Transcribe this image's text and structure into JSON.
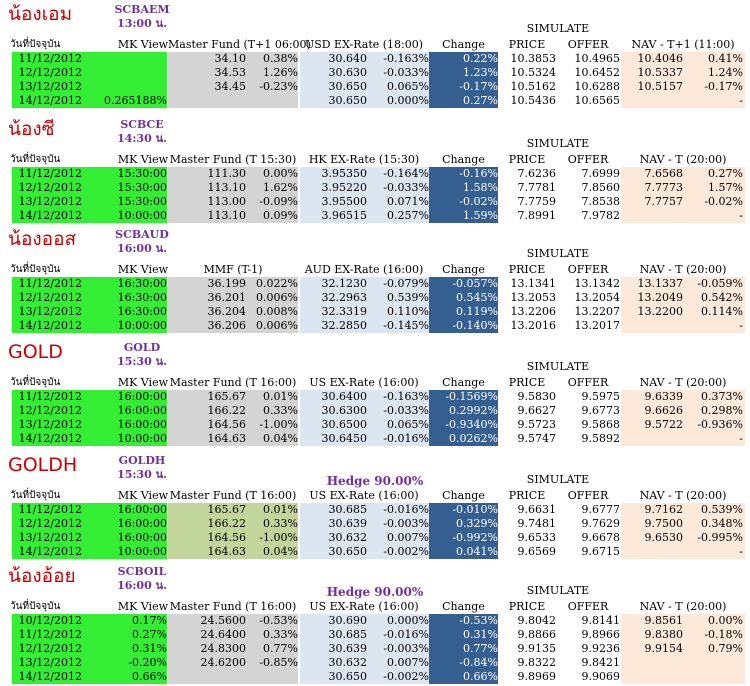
{
  "colors": {
    "title_red": "#cc0000",
    "code_purple": "#7030a0",
    "mk_green": "#33ee33",
    "master_gray": "#d4d4d4",
    "master_olive": "#c2d69b",
    "fx_blue": "#dce6f1",
    "change_navy": "#365f91",
    "nav_peach": "#fde9d9"
  },
  "sections": [
    {
      "thai_name": "น้องเอม",
      "code": "SCBAEM",
      "time": "13:00 น.",
      "simulate": "SIMULATE",
      "hedge": "",
      "headers": [
        "วันที่ปัจจุบัน",
        "MK View",
        "Master Fund (T+1 06:00)",
        "USD EX-Rate (18:00)",
        "Change",
        "PRICE",
        "OFFER",
        "NAV - T+1 (11:00)"
      ],
      "rows": [
        [
          "11/12/2012",
          "",
          "34.10",
          "0.38%",
          "30.640",
          "-0.163%",
          "0.22%",
          "10.3853",
          "10.4965",
          "10.4046",
          "0.41%"
        ],
        [
          "12/12/2012",
          "",
          "34.53",
          "1.26%",
          "30.630",
          "-0.033%",
          "1.23%",
          "10.5324",
          "10.6452",
          "10.5337",
          "1.24%"
        ],
        [
          "13/12/2012",
          "",
          "34.45",
          "-0.23%",
          "30.650",
          "0.065%",
          "-0.17%",
          "10.5162",
          "10.6288",
          "10.5157",
          "-0.17%"
        ],
        [
          "14/12/2012",
          "0.265188%",
          "",
          "",
          "30.650",
          "0.000%",
          "0.27%",
          "10.5436",
          "10.6565",
          "",
          "-"
        ]
      ]
    },
    {
      "thai_name": "น้องซี",
      "code": "SCBCE",
      "time": "14:30 น.",
      "simulate": "SIMULATE",
      "hedge": "",
      "headers": [
        "วันที่ปัจจุบัน",
        "MK View",
        "Master Fund (T 15:30)",
        "HK EX-Rate (15:30)",
        "Change",
        "PRICE",
        "OFFER",
        "NAV - T (20:00)"
      ],
      "rows": [
        [
          "11/12/2012",
          "15:30:00",
          "111.30",
          "0.00%",
          "3.95350",
          "-0.164%",
          "-0.16%",
          "7.6236",
          "7.6999",
          "7.6568",
          "0.27%"
        ],
        [
          "12/12/2012",
          "15:30:00",
          "113.10",
          "1.62%",
          "3.95220",
          "-0.033%",
          "1.58%",
          "7.7781",
          "7.8560",
          "7.7773",
          "1.57%"
        ],
        [
          "13/12/2012",
          "15:30:00",
          "113.00",
          "-0.09%",
          "3.95500",
          "0.071%",
          "-0.02%",
          "7.7759",
          "7.8538",
          "7.7757",
          "-0.02%"
        ],
        [
          "14/12/2012",
          "10:00:00",
          "113.10",
          "0.09%",
          "3.96515",
          "0.257%",
          "1.59%",
          "7.8991",
          "7.9782",
          "",
          "-"
        ]
      ]
    },
    {
      "thai_name": "น้องออส",
      "code": "SCBAUD",
      "time": "16:00 น.",
      "simulate": "SIMULATE",
      "hedge": "",
      "headers": [
        "วันที่ปัจจุบัน",
        "MK View",
        "MMF (T-1)",
        "AUD EX-Rate (16:00)",
        "Change",
        "PRICE",
        "OFFER",
        "NAV - T (20:00)"
      ],
      "rows": [
        [
          "11/12/2012",
          "16:30:00",
          "36.199",
          "0.022%",
          "32.1230",
          "-0.079%",
          "-0.057%",
          "13.1341",
          "13.1342",
          "13.1337",
          "-0.059%"
        ],
        [
          "12/12/2012",
          "16:30:00",
          "36.201",
          "0.006%",
          "32.2963",
          "0.539%",
          "0.545%",
          "13.2053",
          "13.2054",
          "13.2049",
          "0.542%"
        ],
        [
          "13/12/2012",
          "16:30:00",
          "36.204",
          "0.008%",
          "32.3319",
          "0.110%",
          "0.119%",
          "13.2206",
          "13.2207",
          "13.2200",
          "0.114%"
        ],
        [
          "14/12/2012",
          "10:00:00",
          "36.206",
          "0.006%",
          "32.2850",
          "-0.145%",
          "-0.140%",
          "13.2016",
          "13.2017",
          "",
          "-"
        ]
      ]
    },
    {
      "thai_name": "GOLD",
      "code": "GOLD",
      "time": "15:30 น.",
      "simulate": "SIMULATE",
      "hedge": "",
      "headers": [
        "วันที่ปัจจุบัน",
        "MK View",
        "Master Fund (T 16:00)",
        "US EX-Rate (16:00)",
        "Change",
        "PRICE",
        "OFFER",
        "NAV - T (20:00)"
      ],
      "rows": [
        [
          "11/12/2012",
          "16:00:00",
          "165.67",
          "0.01%",
          "30.6400",
          "-0.163%",
          "-0.1569%",
          "9.5830",
          "9.5975",
          "9.6339",
          "0.373%"
        ],
        [
          "12/12/2012",
          "16:00:00",
          "166.22",
          "0.33%",
          "30.6300",
          "-0.033%",
          "0.2992%",
          "9.6627",
          "9.6773",
          "9.6626",
          "0.298%"
        ],
        [
          "13/12/2012",
          "16:00:00",
          "164.56",
          "-1.00%",
          "30.6500",
          "0.065%",
          "-0.9340%",
          "9.5723",
          "9.5868",
          "9.5722",
          "-0.936%"
        ],
        [
          "14/12/2012",
          "10:00:00",
          "164.63",
          "0.04%",
          "30.6450",
          "-0.016%",
          "0.0262%",
          "9.5747",
          "9.5892",
          "",
          "-"
        ]
      ]
    },
    {
      "thai_name": "GOLDH",
      "code": "GOLDH",
      "time": "15:30 น.",
      "simulate": "SIMULATE",
      "hedge": "Hedge 90.00%",
      "headers": [
        "วันที่ปัจจุบัน",
        "MK View",
        "Master Fund (T 16:00)",
        "US EX-Rate (16:00)",
        "Change",
        "PRICE",
        "OFFER",
        "NAV - T (20:00)"
      ],
      "rows": [
        [
          "11/12/2012",
          "16:00:00",
          "165.67",
          "0.01%",
          "30.685",
          "-0.016%",
          "-0.010%",
          "9.6631",
          "9.6777",
          "9.7162",
          "0.539%"
        ],
        [
          "12/12/2012",
          "16:00:00",
          "166.22",
          "0.33%",
          "30.639",
          "-0.003%",
          "0.329%",
          "9.7481",
          "9.7629",
          "9.7500",
          "0.348%"
        ],
        [
          "13/12/2012",
          "16:00:00",
          "164.56",
          "-1.00%",
          "30.632",
          "0.007%",
          "-0.992%",
          "9.6533",
          "9.6678",
          "9.6530",
          "-0.995%"
        ],
        [
          "14/12/2012",
          "10:00:00",
          "164.63",
          "0.04%",
          "30.650",
          "-0.002%",
          "0.041%",
          "9.6569",
          "9.6715",
          "",
          "-"
        ]
      ]
    },
    {
      "thai_name": "น้องอ้อย",
      "code": "SCBOIL",
      "time": "16:00 น.",
      "simulate": "SIMULATE",
      "hedge": "Hedge 90.00%",
      "headers": [
        "วันที่ปัจจุบัน",
        "MK View",
        "Master Fund (T 16:00)",
        "US EX-Rate (16:00)",
        "Change",
        "PRICE",
        "OFFER",
        "NAV - T (20:00)"
      ],
      "rows": [
        [
          "10/12/2012",
          "0.17%",
          "24.5600",
          "-0.53%",
          "30.690",
          "0.000%",
          "-0.53%",
          "9.8042",
          "9.8141",
          "9.8561",
          "0.00%"
        ],
        [
          "11/12/2012",
          "0.27%",
          "24.6400",
          "0.33%",
          "30.685",
          "-0.016%",
          "0.31%",
          "9.8866",
          "9.8966",
          "9.8380",
          "-0.18%"
        ],
        [
          "12/12/2012",
          "0.31%",
          "24.8300",
          "0.77%",
          "30.639",
          "-0.003%",
          "0.77%",
          "9.9135",
          "9.9236",
          "9.9154",
          "0.79%"
        ],
        [
          "13/12/2012",
          "-0.20%",
          "24.6200",
          "-0.85%",
          "30.632",
          "0.007%",
          "-0.84%",
          "9.8322",
          "9.8421",
          "",
          ""
        ],
        [
          "14/12/2012",
          "0.66%",
          "",
          "",
          "30.650",
          "-0.002%",
          "0.66%",
          "9.8969",
          "9.9069",
          "",
          ""
        ]
      ]
    }
  ]
}
